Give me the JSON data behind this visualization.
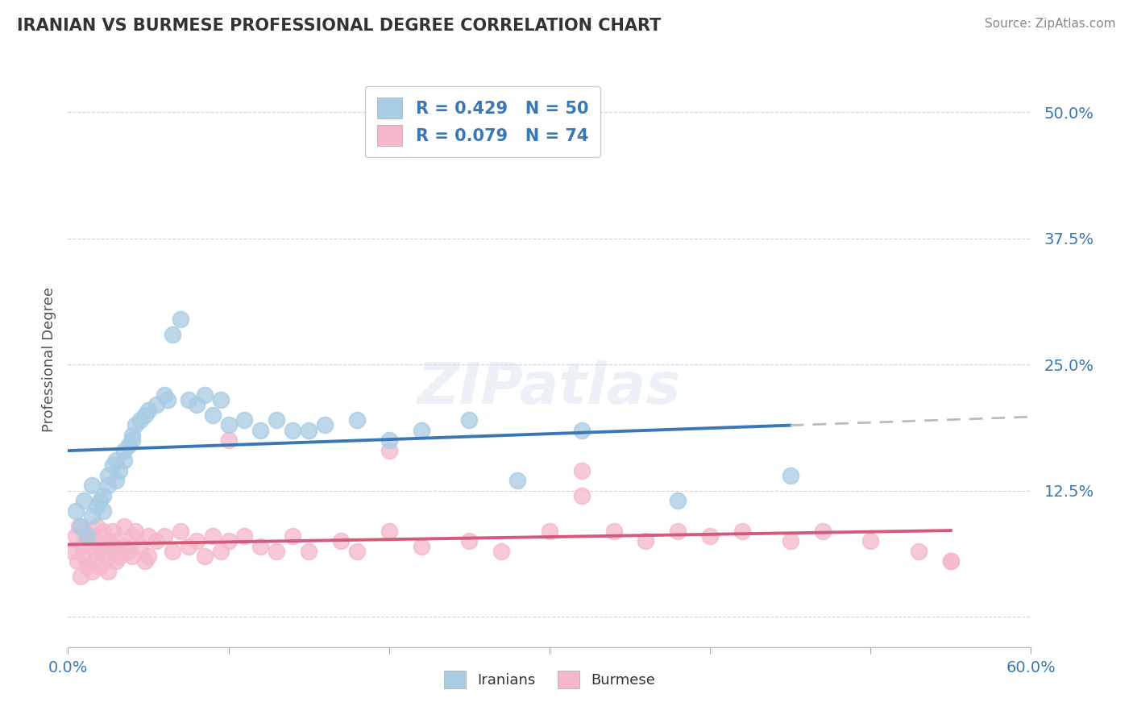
{
  "title": "IRANIAN VS BURMESE PROFESSIONAL DEGREE CORRELATION CHART",
  "source": "Source: ZipAtlas.com",
  "ylabel": "Professional Degree",
  "xmin": 0.0,
  "xmax": 0.6,
  "ymin": -0.03,
  "ymax": 0.54,
  "ytick_vals": [
    0.0,
    0.125,
    0.25,
    0.375,
    0.5
  ],
  "ytick_labels": [
    "",
    "12.5%",
    "25.0%",
    "37.5%",
    "50.0%"
  ],
  "legend_iranian_r": "R = 0.429",
  "legend_iranian_n": "N = 50",
  "legend_burmese_r": "R = 0.079",
  "legend_burmese_n": "N = 74",
  "iranian_color": "#a8cce4",
  "burmese_color": "#f5b8cb",
  "iranian_line_color": "#3a78b5",
  "burmese_line_color": "#d45a7a",
  "trendline_extend_color": "#bbbbbb",
  "background_color": "#ffffff",
  "grid_color": "#c8d4e8",
  "iranians_x": [
    0.005,
    0.008,
    0.01,
    0.012,
    0.015,
    0.015,
    0.018,
    0.02,
    0.022,
    0.022,
    0.025,
    0.025,
    0.028,
    0.03,
    0.03,
    0.032,
    0.035,
    0.035,
    0.038,
    0.04,
    0.04,
    0.042,
    0.045,
    0.048,
    0.05,
    0.055,
    0.06,
    0.062,
    0.065,
    0.07,
    0.075,
    0.08,
    0.085,
    0.09,
    0.095,
    0.1,
    0.11,
    0.12,
    0.13,
    0.14,
    0.15,
    0.16,
    0.18,
    0.2,
    0.22,
    0.25,
    0.28,
    0.32,
    0.38,
    0.45
  ],
  "iranians_y": [
    0.105,
    0.09,
    0.115,
    0.08,
    0.13,
    0.1,
    0.11,
    0.115,
    0.12,
    0.105,
    0.14,
    0.13,
    0.15,
    0.155,
    0.135,
    0.145,
    0.165,
    0.155,
    0.17,
    0.18,
    0.175,
    0.19,
    0.195,
    0.2,
    0.205,
    0.21,
    0.22,
    0.215,
    0.28,
    0.295,
    0.215,
    0.21,
    0.22,
    0.2,
    0.215,
    0.19,
    0.195,
    0.185,
    0.195,
    0.185,
    0.185,
    0.19,
    0.195,
    0.175,
    0.185,
    0.195,
    0.135,
    0.185,
    0.115,
    0.14
  ],
  "burmese_x": [
    0.003,
    0.005,
    0.006,
    0.007,
    0.008,
    0.009,
    0.01,
    0.01,
    0.012,
    0.013,
    0.015,
    0.015,
    0.016,
    0.018,
    0.018,
    0.02,
    0.02,
    0.022,
    0.022,
    0.025,
    0.025,
    0.025,
    0.028,
    0.028,
    0.03,
    0.03,
    0.032,
    0.035,
    0.035,
    0.038,
    0.04,
    0.04,
    0.042,
    0.045,
    0.048,
    0.05,
    0.05,
    0.055,
    0.06,
    0.065,
    0.07,
    0.075,
    0.08,
    0.085,
    0.09,
    0.095,
    0.1,
    0.11,
    0.12,
    0.13,
    0.14,
    0.15,
    0.17,
    0.18,
    0.2,
    0.22,
    0.25,
    0.27,
    0.3,
    0.32,
    0.34,
    0.36,
    0.38,
    0.4,
    0.42,
    0.45,
    0.47,
    0.5,
    0.53,
    0.55,
    0.1,
    0.2,
    0.32,
    0.55
  ],
  "burmese_y": [
    0.065,
    0.08,
    0.055,
    0.09,
    0.04,
    0.07,
    0.06,
    0.085,
    0.05,
    0.075,
    0.045,
    0.08,
    0.055,
    0.09,
    0.065,
    0.07,
    0.05,
    0.065,
    0.085,
    0.06,
    0.075,
    0.045,
    0.07,
    0.085,
    0.055,
    0.075,
    0.06,
    0.07,
    0.09,
    0.065,
    0.08,
    0.06,
    0.085,
    0.07,
    0.055,
    0.08,
    0.06,
    0.075,
    0.08,
    0.065,
    0.085,
    0.07,
    0.075,
    0.06,
    0.08,
    0.065,
    0.075,
    0.08,
    0.07,
    0.065,
    0.08,
    0.065,
    0.075,
    0.065,
    0.085,
    0.07,
    0.075,
    0.065,
    0.085,
    0.12,
    0.085,
    0.075,
    0.085,
    0.08,
    0.085,
    0.075,
    0.085,
    0.075,
    0.065,
    0.055,
    0.175,
    0.165,
    0.145,
    0.055
  ]
}
